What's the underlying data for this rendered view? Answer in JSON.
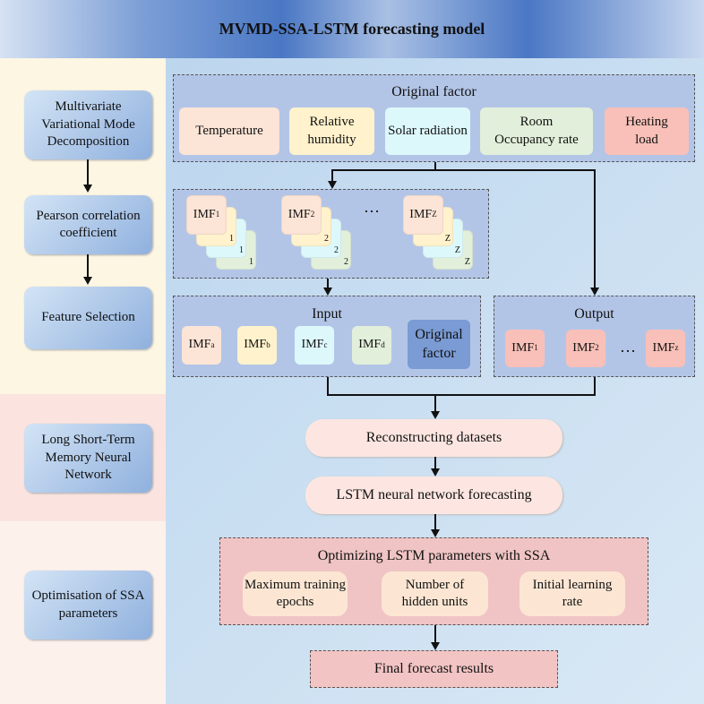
{
  "title": "MVMD-SSA-LSTM forecasting model",
  "left_steps": [
    "Multivariate Variational Mode Decomposition",
    "Pearson correlation coefficient",
    "Feature Selection",
    "Long Short-Term Memory Neural Network",
    "Optimisation of SSA parameters"
  ],
  "original_factor": {
    "title": "Original factor",
    "items": [
      "Temperature",
      "Relative humidity",
      "Solar radiation",
      "Room Occupancy rate",
      "Heating load"
    ]
  },
  "imf_stacks": [
    {
      "label": "IMF",
      "sub": "1"
    },
    {
      "label": "IMF",
      "sub": "2"
    },
    {
      "label": "IMF",
      "sub": "Z"
    }
  ],
  "ellipsis": "…",
  "input": {
    "title": "Input",
    "items": [
      {
        "label": "IMF",
        "sub": "a"
      },
      {
        "label": "IMF",
        "sub": "b"
      },
      {
        "label": "IMF",
        "sub": "c"
      },
      {
        "label": "IMF",
        "sub": "d"
      }
    ],
    "original": "Original factor"
  },
  "output": {
    "title": "Output",
    "items": [
      {
        "label": "IMF",
        "sub": "1"
      },
      {
        "label": "IMF",
        "sub": "2"
      },
      {
        "label": "IMF",
        "sub": "z"
      }
    ]
  },
  "reconstruct": "Reconstructing datasets",
  "lstm": "LSTM neural network forecasting",
  "ssa": {
    "title": "Optimizing LSTM parameters with SSA",
    "params": [
      "Maximum training epochs",
      "Number of hidden units",
      "Initial learning rate"
    ]
  },
  "final": "Final forecast results",
  "colors": {
    "temperature": "#fce4d6",
    "humidity": "#fff2cc",
    "solar": "#ddf8fb",
    "occupancy": "#e2efda",
    "heating": "#f8c0b8",
    "original_box": "#7a9bd4"
  }
}
